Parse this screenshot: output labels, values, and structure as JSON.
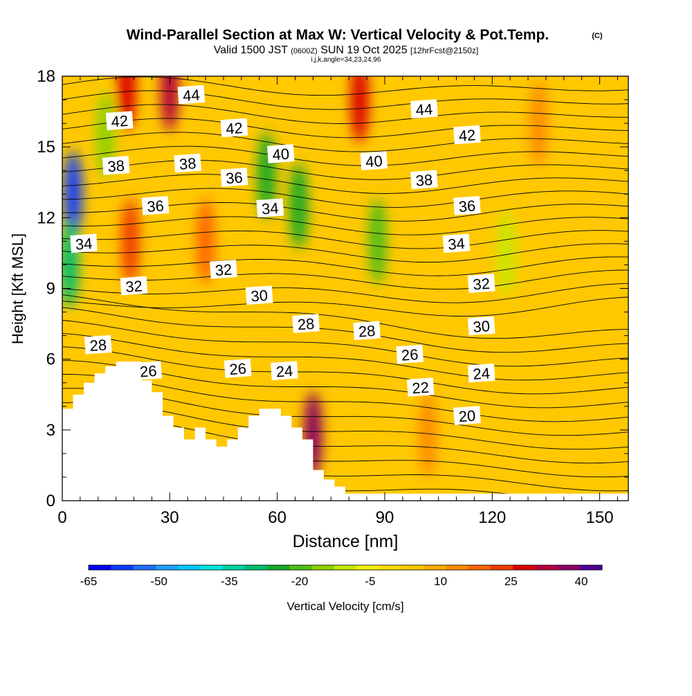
{
  "header": {
    "title": "Wind-Parallel Section at Max W: Vertical Velocity & Pot.Temp.",
    "copyright": "(C)",
    "valid_prefix": "Valid 1500 JST",
    "valid_zulu": "(0600Z)",
    "valid_date": "SUN 19 Oct 2025",
    "forecast": "[12hrFcst@2150z]",
    "indices": "i,j,k,angle=34,23,24,96"
  },
  "chart_data": {
    "type": "heatmap",
    "title": "Wind-Parallel Section at Max W: Vertical Velocity & Pot.Temp.",
    "xlabel": "Distance [nm]",
    "ylabel": "Height [Kft MSL]",
    "xlim": [
      0,
      158
    ],
    "ylim": [
      0,
      18
    ],
    "x_ticks": [
      0,
      30,
      60,
      90,
      120,
      150
    ],
    "y_ticks": [
      0,
      3,
      6,
      9,
      12,
      15,
      18
    ],
    "grid": false,
    "colorbar": {
      "label": "Vertical Velocity [cm/s]",
      "tick_labels": [
        "-65",
        "-50",
        "-35",
        "-20",
        "-5",
        "10",
        "25",
        "40"
      ],
      "tick_values": [
        -65,
        -50,
        -35,
        -20,
        -5,
        10,
        25,
        40
      ],
      "levels": [
        -65,
        -60,
        -55,
        -50,
        -45,
        -40,
        -35,
        -30,
        -25,
        -20,
        -15,
        -10,
        -5,
        0,
        5,
        10,
        15,
        20,
        25,
        30,
        35,
        40,
        45
      ],
      "colors": [
        "#0000ff",
        "#0a3cff",
        "#1e6eff",
        "#1ea0ff",
        "#00c8ff",
        "#00e6dc",
        "#00d2a0",
        "#00be6e",
        "#14aa28",
        "#50be14",
        "#8cd200",
        "#c8e600",
        "#f0f000",
        "#ffdc00",
        "#ffc800",
        "#ffaa00",
        "#ff8c00",
        "#ff6400",
        "#f03c00",
        "#dc0000",
        "#b4003c",
        "#8c0064",
        "#500096"
      ]
    },
    "terrain_profile": {
      "x": [
        0,
        3,
        3,
        6,
        6,
        9,
        9,
        12,
        12,
        15,
        15,
        22,
        22,
        25,
        25,
        28,
        28,
        31,
        31,
        34,
        34,
        37,
        37,
        40,
        40,
        43,
        43,
        46,
        46,
        49,
        49,
        52,
        52,
        55,
        55,
        58,
        58,
        61,
        61,
        64,
        64,
        67,
        67,
        70,
        70,
        73,
        73,
        76,
        76,
        79,
        79,
        82,
        82,
        158
      ],
      "y": [
        3.9,
        3.9,
        4.5,
        4.5,
        5.0,
        5.0,
        5.4,
        5.4,
        5.7,
        5.7,
        5.9,
        5.9,
        5.1,
        5.1,
        4.6,
        4.6,
        3.6,
        3.6,
        3.1,
        3.1,
        2.6,
        2.6,
        3.1,
        3.1,
        2.6,
        2.6,
        2.3,
        2.3,
        2.6,
        2.6,
        3.1,
        3.1,
        3.6,
        3.6,
        3.9,
        3.9,
        3.9,
        3.9,
        3.6,
        3.6,
        3.1,
        3.1,
        2.6,
        2.6,
        1.3,
        1.3,
        0.9,
        0.9,
        0.6,
        0.6,
        0.3,
        0.3,
        0.3,
        0.3
      ]
    },
    "vertical_velocity_features": [
      {
        "x": 3,
        "y": 13,
        "value": -60
      },
      {
        "x": 2,
        "y": 10,
        "value": -30
      },
      {
        "x": 12,
        "y": 15.5,
        "value": -15
      },
      {
        "x": 18,
        "y": 17.5,
        "value": 30
      },
      {
        "x": 19,
        "y": 11,
        "value": 25
      },
      {
        "x": 30,
        "y": 17.5,
        "value": 35
      },
      {
        "x": 40,
        "y": 11,
        "value": 22
      },
      {
        "x": 57,
        "y": 13.8,
        "value": -25
      },
      {
        "x": 66,
        "y": 12.5,
        "value": -25
      },
      {
        "x": 70,
        "y": 2.8,
        "value": 40
      },
      {
        "x": 83,
        "y": 17,
        "value": 30
      },
      {
        "x": 88,
        "y": 11,
        "value": -18
      },
      {
        "x": 102,
        "y": 2.8,
        "value": 18
      },
      {
        "x": 124,
        "y": 10.5,
        "value": -8
      },
      {
        "x": 133,
        "y": 16,
        "value": 15
      }
    ],
    "potential_temperature_labels": [
      {
        "text": "44",
        "x": 36,
        "y": 17.2
      },
      {
        "text": "44",
        "x": 101,
        "y": 16.6
      },
      {
        "text": "42",
        "x": 16,
        "y": 16.1
      },
      {
        "text": "42",
        "x": 48,
        "y": 15.8
      },
      {
        "text": "42",
        "x": 113,
        "y": 15.5
      },
      {
        "text": "40",
        "x": 61,
        "y": 14.7
      },
      {
        "text": "40",
        "x": 87,
        "y": 14.4
      },
      {
        "text": "38",
        "x": 15,
        "y": 14.2
      },
      {
        "text": "38",
        "x": 35,
        "y": 14.3
      },
      {
        "text": "38",
        "x": 101,
        "y": 13.6
      },
      {
        "text": "36",
        "x": 48,
        "y": 13.7
      },
      {
        "text": "36",
        "x": 26,
        "y": 12.5
      },
      {
        "text": "36",
        "x": 113,
        "y": 12.5
      },
      {
        "text": "34",
        "x": 58,
        "y": 12.4
      },
      {
        "text": "34",
        "x": 6,
        "y": 10.9
      },
      {
        "text": "34",
        "x": 110,
        "y": 10.9
      },
      {
        "text": "32",
        "x": 45,
        "y": 9.8
      },
      {
        "text": "32",
        "x": 20,
        "y": 9.1
      },
      {
        "text": "32",
        "x": 117,
        "y": 9.2
      },
      {
        "text": "30",
        "x": 55,
        "y": 8.7
      },
      {
        "text": "30",
        "x": 117,
        "y": 7.4
      },
      {
        "text": "28",
        "x": 68,
        "y": 7.5
      },
      {
        "text": "28",
        "x": 85,
        "y": 7.2
      },
      {
        "text": "28",
        "x": 10,
        "y": 6.6
      },
      {
        "text": "26",
        "x": 97,
        "y": 6.2
      },
      {
        "text": "26",
        "x": 24,
        "y": 5.5
      },
      {
        "text": "26",
        "x": 49,
        "y": 5.6
      },
      {
        "text": "24",
        "x": 62,
        "y": 5.5
      },
      {
        "text": "24",
        "x": 117,
        "y": 5.4
      },
      {
        "text": "22",
        "x": 100,
        "y": 4.8
      },
      {
        "text": "20",
        "x": 113,
        "y": 3.6
      }
    ]
  }
}
